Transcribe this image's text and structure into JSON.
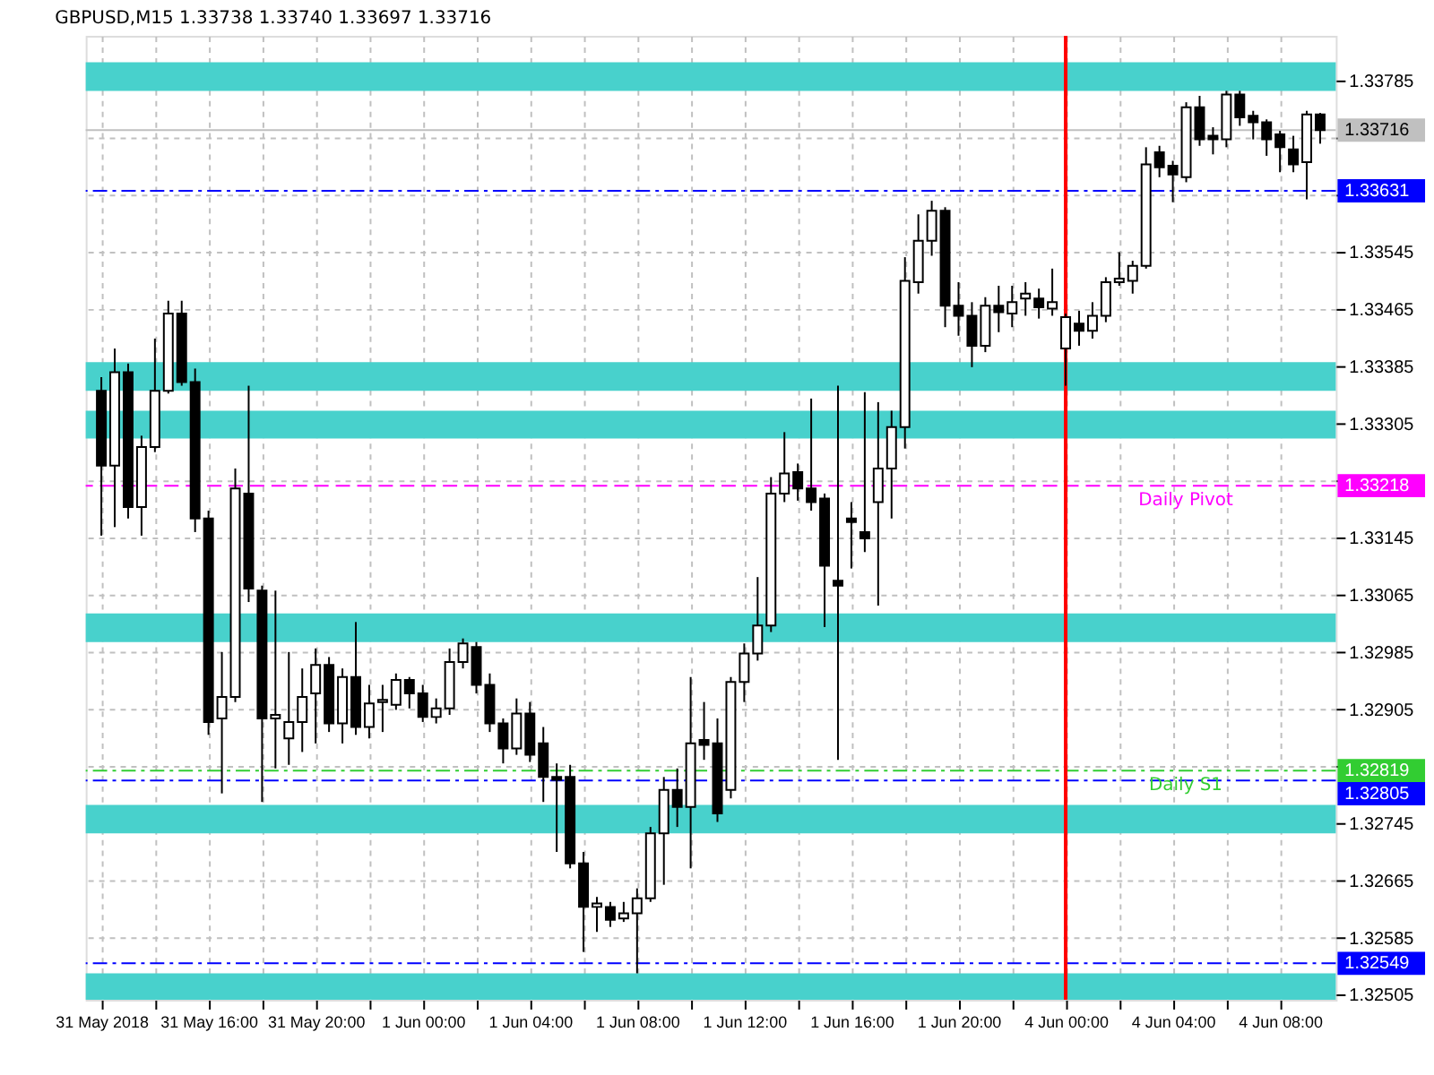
{
  "chart_data": {
    "type": "candlestick",
    "title": "GBPUSD,M15  1.33738 1.33740 1.33697 1.33716",
    "color": "#000000",
    "grid": true,
    "categories": [
      "31 May 2018",
      null,
      null,
      null,
      null,
      null,
      null,
      null,
      "31 May 16:00",
      null,
      null,
      null,
      null,
      null,
      null,
      null,
      "31 May 20:00",
      null,
      null,
      null,
      null,
      null,
      null,
      null,
      "1 Jun 00:00",
      null,
      null,
      null,
      null,
      null,
      null,
      null,
      "1 Jun 04:00",
      null,
      null,
      null,
      null,
      null,
      null,
      null,
      "1 Jun 08:00",
      null,
      null,
      null,
      null,
      null,
      null,
      null,
      "1 Jun 12:00",
      null,
      null,
      null,
      null,
      null,
      null,
      null,
      "1 Jun 16:00",
      null,
      null,
      null,
      null,
      null,
      null,
      null,
      "1 Jun 20:00",
      null,
      null,
      null,
      null,
      null,
      null,
      null,
      "4 Jun 00:00",
      null,
      null,
      null,
      null,
      null,
      null,
      null,
      "4 Jun 04:00",
      null,
      null,
      null,
      null,
      null,
      null,
      null,
      "4 Jun 08:00",
      null,
      null,
      null
    ],
    "ohlc": [
      [
        1.33351,
        1.3337,
        1.33148,
        1.33246
      ],
      [
        1.33246,
        1.3341,
        1.3316,
        1.33377
      ],
      [
        1.33377,
        1.33389,
        1.33172,
        1.33188
      ],
      [
        1.33188,
        1.33288,
        1.33148,
        1.33272
      ],
      [
        1.33272,
        1.33424,
        1.33265,
        1.33351
      ],
      [
        1.33351,
        1.33477,
        1.33347,
        1.33459
      ],
      [
        1.33459,
        1.33477,
        1.33358,
        1.33363
      ],
      [
        1.33363,
        1.33382,
        1.33153,
        1.33172
      ],
      [
        1.33172,
        1.33183,
        1.32869,
        1.32887
      ],
      [
        1.32892,
        1.32985,
        1.32787,
        1.32922
      ],
      [
        1.32922,
        1.33242,
        1.32915,
        1.33214
      ],
      [
        1.33207,
        1.33358,
        1.33055,
        1.33074
      ],
      [
        1.33071,
        1.33078,
        1.32775,
        1.32892
      ],
      [
        1.32892,
        1.33071,
        1.32822,
        1.32897
      ],
      [
        1.32864,
        1.32985,
        1.32827,
        1.32887
      ],
      [
        1.32887,
        1.32962,
        1.32845,
        1.32922
      ],
      [
        1.32927,
        1.3299,
        1.32857,
        1.32967
      ],
      [
        1.32967,
        1.32978,
        1.32873,
        1.32885
      ],
      [
        1.32885,
        1.32962,
        1.32857,
        1.3295
      ],
      [
        1.3295,
        1.33027,
        1.32869,
        1.3288
      ],
      [
        1.3288,
        1.32939,
        1.32864,
        1.32913
      ],
      [
        1.32915,
        1.32939,
        1.32873,
        1.32918
      ],
      [
        1.32911,
        1.32955,
        1.32904,
        1.32946
      ],
      [
        1.32946,
        1.3295,
        1.32906,
        1.32927
      ],
      [
        1.32927,
        1.32939,
        1.32887,
        1.32894
      ],
      [
        1.32894,
        1.3292,
        1.32885,
        1.32906
      ],
      [
        1.32906,
        1.3299,
        1.32897,
        1.32971
      ],
      [
        1.32971,
        1.33004,
        1.32962,
        1.32997
      ],
      [
        1.32992,
        1.32999,
        1.32927,
        1.32939
      ],
      [
        1.32939,
        1.32955,
        1.32873,
        1.32885
      ],
      [
        1.32885,
        1.32892,
        1.32829,
        1.3285
      ],
      [
        1.3285,
        1.3292,
        1.32841,
        1.32899
      ],
      [
        1.32899,
        1.32915,
        1.32831,
        1.32841
      ],
      [
        1.32857,
        1.3288,
        1.32775,
        1.3281
      ],
      [
        1.3281,
        1.32829,
        1.32705,
        1.32806
      ],
      [
        1.3281,
        1.32827,
        1.32682,
        1.32689
      ],
      [
        1.32689,
        1.32705,
        1.32565,
        1.32628
      ],
      [
        1.32628,
        1.32642,
        1.32593,
        1.32633
      ],
      [
        1.32628,
        1.32635,
        1.326,
        1.3261
      ],
      [
        1.32612,
        1.32635,
        1.32607,
        1.32619
      ],
      [
        1.32619,
        1.32654,
        1.32535,
        1.3264
      ],
      [
        1.3264,
        1.3274,
        1.32635,
        1.32731
      ],
      [
        1.32731,
        1.3281,
        1.32659,
        1.32792
      ],
      [
        1.32792,
        1.32822,
        1.3274,
        1.32768
      ],
      [
        1.32768,
        1.3295,
        1.32682,
        1.32857
      ],
      [
        1.32862,
        1.32915,
        1.32834,
        1.32855
      ],
      [
        1.32857,
        1.32892,
        1.32747,
        1.32759
      ],
      [
        1.32792,
        1.3295,
        1.3278,
        1.32943
      ],
      [
        1.32943,
        1.32997,
        1.32915,
        1.32983
      ],
      [
        1.32983,
        1.3309,
        1.32973,
        1.33022
      ],
      [
        1.33022,
        1.3323,
        1.33013,
        1.33207
      ],
      [
        1.33207,
        1.33293,
        1.33195,
        1.33235
      ],
      [
        1.33237,
        1.33249,
        1.33197,
        1.33214
      ],
      [
        1.33214,
        1.3334,
        1.33183,
        1.33195
      ],
      [
        1.332,
        1.33207,
        1.3302,
        1.33106
      ],
      [
        1.33085,
        1.33358,
        1.32834,
        1.33078
      ],
      [
        1.33172,
        1.33195,
        1.33102,
        1.33167
      ],
      [
        1.33153,
        1.33349,
        1.33125,
        1.33144
      ],
      [
        1.33195,
        1.33335,
        1.3305,
        1.33242
      ],
      [
        1.33242,
        1.33323,
        1.33172,
        1.333
      ],
      [
        1.333,
        1.33538,
        1.3327,
        1.33505
      ],
      [
        1.33503,
        1.33598,
        1.33487,
        1.33561
      ],
      [
        1.33561,
        1.33617,
        1.3354,
        1.33603
      ],
      [
        1.33603,
        1.33608,
        1.3344,
        1.3347
      ],
      [
        1.3347,
        1.33503,
        1.33428,
        1.33456
      ],
      [
        1.33456,
        1.33475,
        1.33384,
        1.33414
      ],
      [
        1.33414,
        1.33482,
        1.33405,
        1.3347
      ],
      [
        1.3347,
        1.33498,
        1.33433,
        1.33461
      ],
      [
        1.33459,
        1.33498,
        1.3344,
        1.33475
      ],
      [
        1.3348,
        1.33503,
        1.33456,
        1.33487
      ],
      [
        1.3348,
        1.33494,
        1.33452,
        1.33468
      ],
      [
        1.33466,
        1.33522,
        1.33456,
        1.33475
      ],
      [
        1.3341,
        1.33459,
        1.33358,
        1.33454
      ],
      [
        1.33445,
        1.33463,
        1.33414,
        1.33435
      ],
      [
        1.33435,
        1.33475,
        1.33424,
        1.33456
      ],
      [
        1.33456,
        1.3351,
        1.33447,
        1.33503
      ],
      [
        1.33503,
        1.33545,
        1.33498,
        1.33508
      ],
      [
        1.33505,
        1.33533,
        1.33487,
        1.33526
      ],
      [
        1.33526,
        1.33692,
        1.33522,
        1.33668
      ],
      [
        1.33685,
        1.33694,
        1.3365,
        1.33664
      ],
      [
        1.33666,
        1.33673,
        1.33615,
        1.33654
      ],
      [
        1.3365,
        1.33755,
        1.33643,
        1.33748
      ],
      [
        1.33748,
        1.33764,
        1.33694,
        1.33703
      ],
      [
        1.33708,
        1.3372,
        1.33682,
        1.33703
      ],
      [
        1.33703,
        1.33771,
        1.33692,
        1.33766
      ],
      [
        1.33766,
        1.33771,
        1.33722,
        1.33734
      ],
      [
        1.33736,
        1.33743,
        1.33703,
        1.33727
      ],
      [
        1.33727,
        1.33731,
        1.3368,
        1.33703
      ],
      [
        1.3371,
        1.33715,
        1.33657,
        1.33692
      ],
      [
        1.33689,
        1.33708,
        1.33657,
        1.33668
      ],
      [
        1.33671,
        1.33743,
        1.33619,
        1.33738
      ],
      [
        1.33738,
        1.3374,
        1.33697,
        1.33716
      ]
    ],
    "ylim": [
      1.32498,
      1.33848
    ],
    "yticks": [
      1.33785,
      {
        "value": 1.33705,
        "label": null
      },
      {
        "value": 1.33625,
        "label": null
      },
      1.33545,
      1.33465,
      1.33385,
      1.33305,
      {
        "value": 1.33225,
        "label": null
      },
      1.33145,
      1.33065,
      1.32985,
      1.32905,
      {
        "value": 1.32825,
        "label": null
      },
      1.32745,
      1.32665,
      1.32585,
      1.32505
    ],
    "ref_lines": [
      {
        "axis": "y",
        "value": 1.33716,
        "label": "1.33716",
        "color": "#c0c0c0",
        "line_style": "solid"
      },
      {
        "axis": "y",
        "value": 1.33631,
        "label": "1.33631",
        "color": "#0000ff",
        "line_style": "dashdot"
      },
      {
        "axis": "y",
        "value": 1.33218,
        "label": "1.33218",
        "color": "#ff00ff",
        "line_style": "dashed"
      },
      {
        "axis": "y",
        "value": 1.32819,
        "label": "1.32819",
        "color": "#32cd32",
        "line_style": "dashdot"
      },
      {
        "axis": "y",
        "value": 1.32805,
        "label": "1.32805",
        "color": "#0000ff",
        "line_style": "dashdot"
      },
      {
        "axis": "y",
        "value": 1.32549,
        "label": "1.32549",
        "color": "#0000ff",
        "line_style": "dashdot"
      },
      {
        "axis": "x",
        "value": "4 Jun 00:00",
        "color": "#ff0000",
        "line_style": "solid"
      }
    ],
    "bands": [
      {
        "axis": "y",
        "from": 1.33771,
        "to": 1.33811,
        "color": "#48d1cc"
      },
      {
        "axis": "y",
        "from": 1.33351,
        "to": 1.33391,
        "color": "#48d1cc"
      },
      {
        "axis": "y",
        "from": 1.33284,
        "to": 1.33323,
        "color": "#48d1cc"
      },
      {
        "axis": "y",
        "from": 1.32999,
        "to": 1.33039,
        "color": "#48d1cc"
      },
      {
        "axis": "y",
        "from": 1.32731,
        "to": 1.32771,
        "color": "#48d1cc"
      },
      {
        "axis": "y",
        "from": 1.32498,
        "to": 1.32535,
        "color": "#48d1cc"
      }
    ],
    "annotations": [
      {
        "text": "Daily Pivot",
        "y": 1.33218
      },
      {
        "text": "Daily S1",
        "y": 1.32819
      }
    ]
  }
}
